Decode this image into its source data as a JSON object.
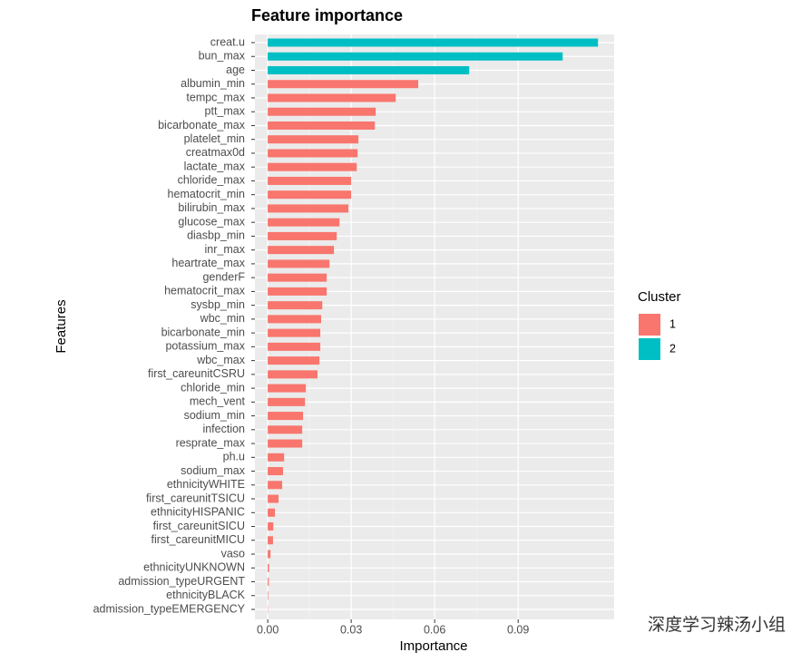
{
  "chart_data": {
    "type": "bar",
    "orientation": "horizontal",
    "title": "Feature importance",
    "x_label": "Importance",
    "y_label": "Features",
    "legend_title": "Cluster",
    "legend_position": "right",
    "grid": true,
    "watermark": "深度学习辣汤小组",
    "xlim": [
      -0.0046,
      0.1245
    ],
    "xticks": [
      {
        "value": 0,
        "label": "0.00"
      },
      0.03,
      0.06,
      0.09
    ],
    "categories": [
      "creat.u",
      "bun_max",
      "age",
      "albumin_min",
      "tempc_max",
      "ptt_max",
      "bicarbonate_max",
      "platelet_min",
      "creatmax0d",
      "lactate_max",
      "chloride_max",
      "hematocrit_min",
      "bilirubin_max",
      "glucose_max",
      "diasbp_min",
      "inr_max",
      "heartrate_max",
      "genderF",
      "hematocrit_max",
      "sysbp_min",
      "wbc_min",
      "bicarbonate_min",
      "potassium_max",
      "wbc_max",
      "first_careunitCSRU",
      "chloride_min",
      "mech_vent",
      "sodium_min",
      "infection",
      "resprate_max",
      "ph.u",
      "sodium_max",
      "ethnicityWHITE",
      "first_careunitTSICU",
      "ethnicityHISPANIC",
      "first_careunitSICU",
      "first_careunitMICU",
      "vaso",
      "ethnicityUNKNOWN",
      "admission_typeURGENT",
      "ethnicityBLACK",
      "admission_typeEMERGENCY"
    ],
    "series": [
      {
        "name": "1",
        "color": "#f8766d",
        "values": [
          null,
          null,
          null,
          0.0541,
          0.046,
          0.0388,
          0.0385,
          0.0326,
          0.0323,
          0.032,
          0.03,
          0.03,
          0.029,
          0.0258,
          0.0248,
          0.0238,
          0.0222,
          0.0212,
          0.0212,
          0.0196,
          0.0192,
          0.0189,
          0.0189,
          0.0186,
          0.0179,
          0.0137,
          0.0134,
          0.0127,
          0.0124,
          0.0124,
          0.0059,
          0.0055,
          0.0052,
          0.0039,
          0.0026,
          0.002,
          0.0019,
          0.001,
          0.0005,
          0.0004,
          0.0002,
          0.0001
        ]
      },
      {
        "name": "2",
        "color": "#00bfc4",
        "values": [
          0.1187,
          0.106,
          0.0724,
          null,
          null,
          null,
          null,
          null,
          null,
          null,
          null,
          null,
          null,
          null,
          null,
          null,
          null,
          null,
          null,
          null,
          null,
          null,
          null,
          null,
          null,
          null,
          null,
          null,
          null,
          null,
          null,
          null,
          null,
          null,
          null,
          null,
          null,
          null,
          null,
          null,
          null,
          null
        ]
      }
    ]
  }
}
